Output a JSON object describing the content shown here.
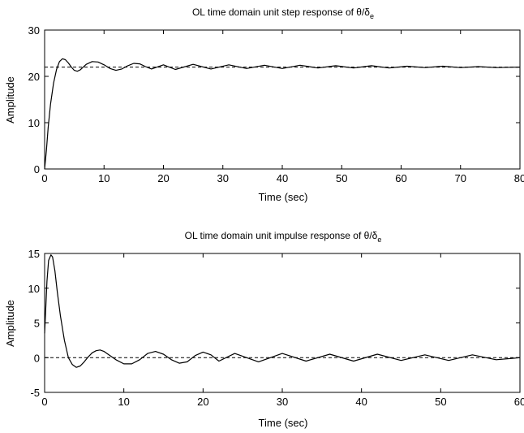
{
  "chart_data": [
    {
      "type": "line",
      "title": "OL time domain unit step response of θ/δ",
      "title_subscript": "e",
      "xlabel": "Time (sec)",
      "ylabel": "Amplitude",
      "xlim": [
        0,
        80
      ],
      "ylim": [
        0,
        30
      ],
      "xticks": [
        "0",
        "10",
        "20",
        "30",
        "40",
        "50",
        "60",
        "70",
        "80"
      ],
      "yticks": [
        "0",
        "10",
        "20",
        "30"
      ],
      "grid": false,
      "line_color": "#000000",
      "reference_line": {
        "y": 22,
        "style": "dashed"
      },
      "series": [
        {
          "x": [
            0,
            0.3,
            0.6,
            1.0,
            1.5,
            2.0,
            2.5,
            3.0,
            3.5,
            4.0,
            4.5,
            5.0,
            5.5,
            6.0,
            6.5,
            7.0,
            8.0,
            9.0,
            10.0,
            11.0,
            12.0,
            13.0,
            14.0,
            15.0,
            16.0,
            17.0,
            18.0,
            20.0,
            22.0,
            25.0,
            28.0,
            31.0,
            34.0,
            37.0,
            40.0,
            43.0,
            46.0,
            49.0,
            52.0,
            55.0,
            58.0,
            61.0,
            64.0,
            67.0,
            70.0,
            73.0,
            76.0,
            80.0
          ],
          "y": [
            0,
            4,
            9,
            14,
            18.5,
            21.5,
            23.2,
            23.8,
            23.6,
            22.9,
            22.0,
            21.3,
            21.1,
            21.4,
            22.0,
            22.6,
            23.2,
            23.1,
            22.5,
            21.7,
            21.3,
            21.6,
            22.3,
            22.8,
            22.7,
            22.1,
            21.6,
            22.5,
            21.5,
            22.6,
            21.6,
            22.5,
            21.7,
            22.4,
            21.7,
            22.4,
            21.8,
            22.3,
            21.8,
            22.3,
            21.8,
            22.2,
            21.9,
            22.2,
            21.9,
            22.1,
            21.9,
            22.0
          ]
        }
      ]
    },
    {
      "type": "line",
      "title": "OL time domain unit impulse response of θ/δ",
      "title_subscript": "e",
      "xlabel": "Time (sec)",
      "ylabel": "Amplitude",
      "xlim": [
        0,
        60
      ],
      "ylim": [
        -5,
        15
      ],
      "xticks": [
        "0",
        "10",
        "20",
        "30",
        "40",
        "50",
        "60"
      ],
      "yticks": [
        "-5",
        "0",
        "5",
        "10",
        "15"
      ],
      "grid": false,
      "line_color": "#000000",
      "reference_line": {
        "y": 0,
        "style": "dashed"
      },
      "series": [
        {
          "x": [
            0,
            0.1,
            0.3,
            0.5,
            0.8,
            1.0,
            1.3,
            1.6,
            2.0,
            2.5,
            3.0,
            3.5,
            4.0,
            4.5,
            5.0,
            5.5,
            6.0,
            6.5,
            7.0,
            7.5,
            8.0,
            9.0,
            10.0,
            11.0,
            12.0,
            13.0,
            14.0,
            15.0,
            16.0,
            17.0,
            18.0,
            19.0,
            20.0,
            21.0,
            22.0,
            24.0,
            27.0,
            30.0,
            33.0,
            36.0,
            39.0,
            42.0,
            45.0,
            48.0,
            51.0,
            54.0,
            57.0,
            60.0
          ],
          "y": [
            3.5,
            6,
            11,
            14,
            14.8,
            14.5,
            12.5,
            9.5,
            6.0,
            2.5,
            0.0,
            -1.0,
            -1.4,
            -1.2,
            -0.6,
            0.1,
            0.7,
            1.0,
            1.1,
            0.9,
            0.5,
            -0.3,
            -0.9,
            -0.9,
            -0.3,
            0.6,
            0.9,
            0.5,
            -0.3,
            -0.8,
            -0.6,
            0.3,
            0.8,
            0.4,
            -0.5,
            0.6,
            -0.6,
            0.6,
            -0.5,
            0.5,
            -0.5,
            0.5,
            -0.4,
            0.4,
            -0.4,
            0.4,
            -0.3,
            0.0
          ]
        }
      ]
    }
  ]
}
